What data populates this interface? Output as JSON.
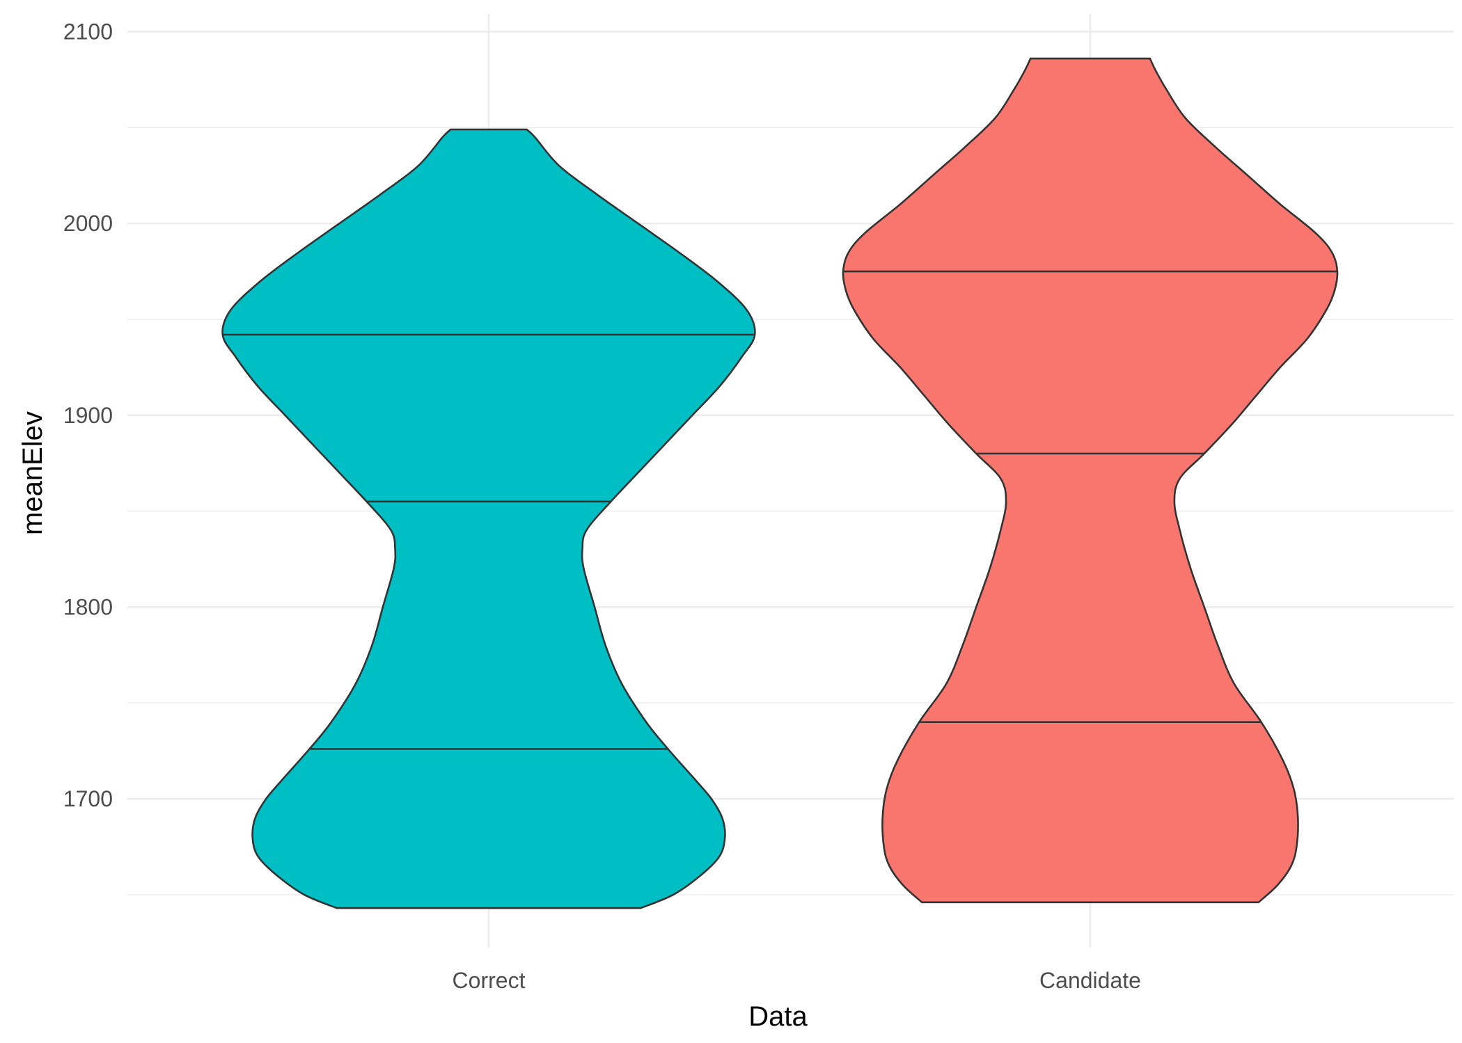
{
  "chart_data": {
    "type": "violin",
    "xlabel": "Data",
    "ylabel": "meanElev",
    "categories": [
      "Correct",
      "Candidate"
    ],
    "ylim": [
      1645,
      2100
    ],
    "y_ticks": [
      1700,
      1800,
      1900,
      2000,
      2100
    ],
    "grid": true,
    "legend": "none",
    "draw_quantiles": [
      0.25,
      0.5,
      0.75
    ],
    "series": [
      {
        "category": "Correct",
        "color": "#00BFC4",
        "min": 1643,
        "max": 2049,
        "quantiles": [
          1726,
          1855,
          1942
        ],
        "density": [
          [
            1643,
            0.56
          ],
          [
            1650,
            0.68
          ],
          [
            1660,
            0.78
          ],
          [
            1670,
            0.85
          ],
          [
            1680,
            0.87
          ],
          [
            1690,
            0.86
          ],
          [
            1700,
            0.82
          ],
          [
            1710,
            0.76
          ],
          [
            1726,
            0.66
          ],
          [
            1740,
            0.58
          ],
          [
            1760,
            0.49
          ],
          [
            1780,
            0.43
          ],
          [
            1800,
            0.39
          ],
          [
            1820,
            0.35
          ],
          [
            1830,
            0.345
          ],
          [
            1840,
            0.36
          ],
          [
            1855,
            0.45
          ],
          [
            1870,
            0.55
          ],
          [
            1885,
            0.65
          ],
          [
            1900,
            0.75
          ],
          [
            1915,
            0.85
          ],
          [
            1930,
            0.93
          ],
          [
            1942,
            0.98
          ],
          [
            1955,
            0.95
          ],
          [
            1970,
            0.84
          ],
          [
            1985,
            0.7
          ],
          [
            2000,
            0.55
          ],
          [
            2015,
            0.4
          ],
          [
            2030,
            0.26
          ],
          [
            2045,
            0.17
          ],
          [
            2049,
            0.14
          ]
        ]
      },
      {
        "category": "Candidate",
        "color": "#F8766D",
        "min": 1646,
        "max": 2086,
        "quantiles": [
          1740,
          1880,
          1975
        ],
        "density": [
          [
            1646,
            0.62
          ],
          [
            1655,
            0.69
          ],
          [
            1665,
            0.74
          ],
          [
            1675,
            0.76
          ],
          [
            1690,
            0.765
          ],
          [
            1705,
            0.75
          ],
          [
            1720,
            0.71
          ],
          [
            1740,
            0.63
          ],
          [
            1760,
            0.53
          ],
          [
            1780,
            0.47
          ],
          [
            1800,
            0.42
          ],
          [
            1820,
            0.37
          ],
          [
            1840,
            0.33
          ],
          [
            1855,
            0.31
          ],
          [
            1867,
            0.33
          ],
          [
            1880,
            0.42
          ],
          [
            1895,
            0.52
          ],
          [
            1910,
            0.61
          ],
          [
            1925,
            0.7
          ],
          [
            1940,
            0.8
          ],
          [
            1955,
            0.87
          ],
          [
            1965,
            0.9
          ],
          [
            1975,
            0.91
          ],
          [
            1985,
            0.89
          ],
          [
            1995,
            0.83
          ],
          [
            2010,
            0.7
          ],
          [
            2025,
            0.58
          ],
          [
            2040,
            0.46
          ],
          [
            2055,
            0.35
          ],
          [
            2070,
            0.28
          ],
          [
            2080,
            0.24
          ],
          [
            2086,
            0.22
          ]
        ]
      }
    ]
  }
}
